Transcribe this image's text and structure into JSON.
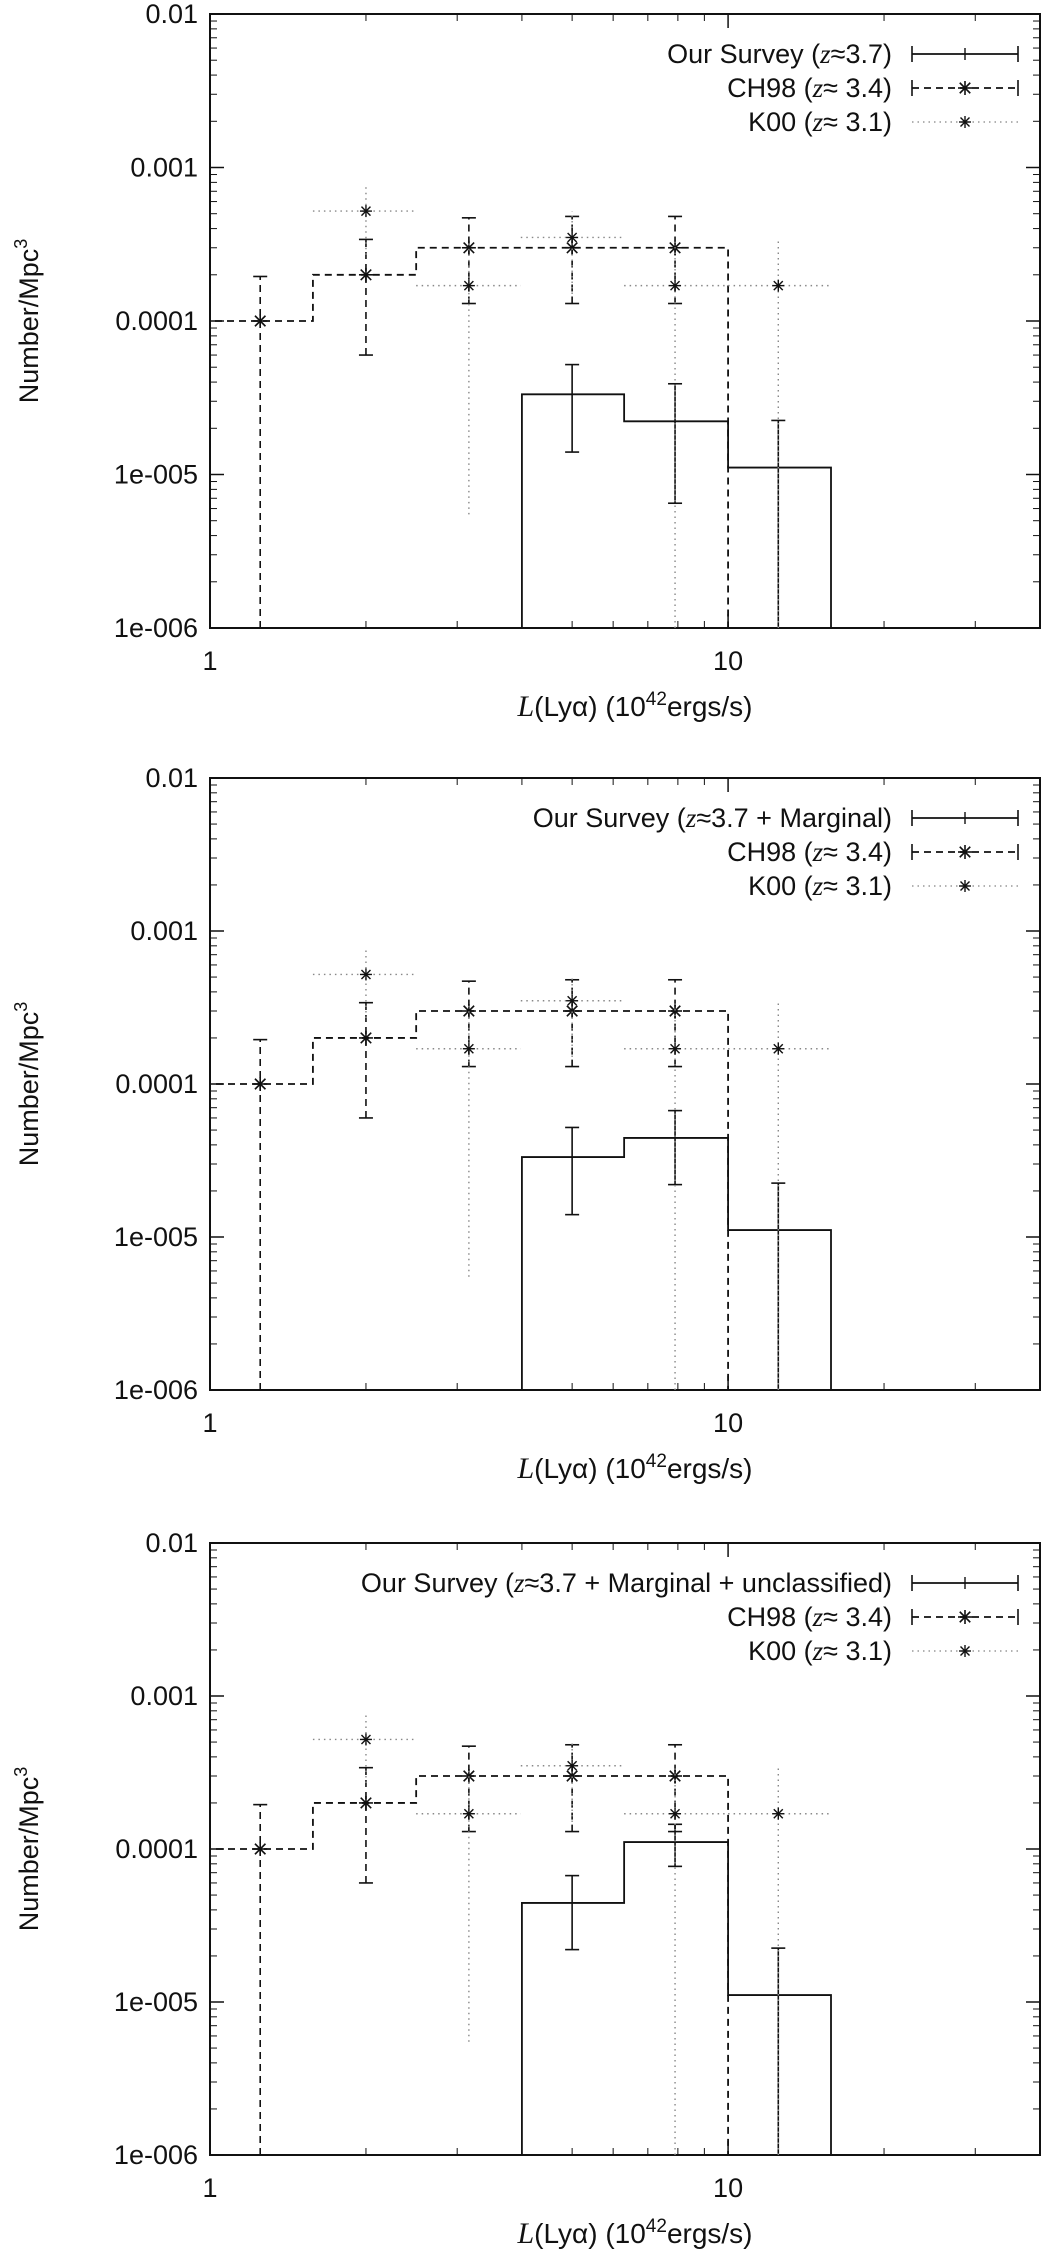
{
  "figure": {
    "panels_count": 3
  },
  "chart_data": [
    {
      "type": "line",
      "scale": {
        "x": "log",
        "y": "log"
      },
      "xlim": [
        1,
        40
      ],
      "ylim": [
        1e-06,
        0.01
      ],
      "x_ticks": [
        {
          "value": 1,
          "label": "1"
        },
        {
          "value": 10,
          "label": "10"
        }
      ],
      "y_ticks": [
        {
          "value": 0.01,
          "label": "0.01"
        },
        {
          "value": 0.001,
          "label": "0.001"
        },
        {
          "value": 0.0001,
          "label": "0.0001"
        },
        {
          "value": 1e-05,
          "label": "1e-005"
        },
        {
          "value": 1e-06,
          "label": "1e-006"
        }
      ],
      "xlabel": {
        "prefix": "L",
        "paren": "(Lyα)",
        "suffix": "(10",
        "sup": "42",
        "tail": "ergs/s)"
      },
      "ylabel": {
        "text": "Number/Mpc",
        "sup": "3"
      },
      "legend_position": "top-right",
      "series": [
        {
          "name": {
            "left": "Our Survey (",
            "z": "z",
            "right": "≈3.7)"
          },
          "style": "solid-histogram",
          "bin_edges": [
            4.0,
            6.3,
            10.0,
            15.8
          ],
          "values": [
            3.33e-05,
            2.22e-05,
            1.11e-05
          ],
          "points": [
            {
              "x": 5.0,
              "y": 3.33e-05,
              "yerr_low": 1.4e-05,
              "yerr_high": 5.2e-05
            },
            {
              "x": 7.9,
              "y": 2.22e-05,
              "yerr_low": 6.5e-06,
              "yerr_high": 3.9e-05
            },
            {
              "x": 12.5,
              "y": 1.11e-05,
              "yerr_low": 1e-06,
              "yerr_high": 2.25e-05
            }
          ]
        },
        {
          "name": {
            "left": "CH98 (",
            "z": "z",
            "right": "≈ 3.4)"
          },
          "style": "dashed-histogram",
          "bin_edges": [
            1.0,
            1.58,
            2.5,
            3.98,
            6.3,
            10.0
          ],
          "values": [
            0.0001,
            0.0002,
            0.0003,
            0.0003,
            0.0003
          ],
          "points": [
            {
              "x": 1.25,
              "y": 0.0001,
              "yerr_low": 1e-06,
              "yerr_high": 0.000195
            },
            {
              "x": 2.0,
              "y": 0.0002,
              "yerr_low": 6e-05,
              "yerr_high": 0.00034
            },
            {
              "x": 3.16,
              "y": 0.0003,
              "yerr_low": 0.00013,
              "yerr_high": 0.00047
            },
            {
              "x": 5.0,
              "y": 0.0003,
              "yerr_low": 0.00013,
              "yerr_high": 0.00048
            },
            {
              "x": 7.9,
              "y": 0.0003,
              "yerr_low": 0.00013,
              "yerr_high": 0.00048
            }
          ]
        },
        {
          "name": {
            "left": "K00 (",
            "z": "z",
            "right": "≈ 3.1)"
          },
          "style": "dotted-points",
          "points": [
            {
              "x": 2.0,
              "y": 0.00052,
              "yerr_low": 0.00027,
              "yerr_high": 0.00078,
              "xerr_low": 1.58,
              "xerr_high": 2.5
            },
            {
              "x": 3.16,
              "y": 0.00017,
              "yerr_low": 5.5e-06,
              "yerr_high": 0.00034,
              "xerr_low": 2.5,
              "xerr_high": 3.98
            },
            {
              "x": 5.0,
              "y": 0.00035,
              "yerr_low": 0.00015,
              "yerr_high": 0.00052,
              "xerr_low": 3.98,
              "xerr_high": 6.3
            },
            {
              "x": 7.9,
              "y": 0.00017,
              "yerr_low": 1e-06,
              "yerr_high": 0.00034,
              "xerr_low": 6.3,
              "xerr_high": 10.0
            },
            {
              "x": 12.5,
              "y": 0.00017,
              "yerr_low": 8e-07,
              "yerr_high": 0.00034,
              "xerr_low": 10.0,
              "xerr_high": 15.8
            }
          ]
        }
      ]
    },
    {
      "type": "line",
      "scale": {
        "x": "log",
        "y": "log"
      },
      "xlim": [
        1,
        40
      ],
      "ylim": [
        1e-06,
        0.01
      ],
      "x_ticks": [
        {
          "value": 1,
          "label": "1"
        },
        {
          "value": 10,
          "label": "10"
        }
      ],
      "y_ticks": [
        {
          "value": 0.01,
          "label": "0.01"
        },
        {
          "value": 0.001,
          "label": "0.001"
        },
        {
          "value": 0.0001,
          "label": "0.0001"
        },
        {
          "value": 1e-05,
          "label": "1e-005"
        },
        {
          "value": 1e-06,
          "label": "1e-006"
        }
      ],
      "xlabel": {
        "prefix": "L",
        "paren": "(Lyα)",
        "suffix": "(10",
        "sup": "42",
        "tail": "ergs/s)"
      },
      "ylabel": {
        "text": "Number/Mpc",
        "sup": "3"
      },
      "legend_position": "top-right",
      "series": [
        {
          "name": {
            "left": "Our Survey (",
            "z": "z",
            "right": "≈3.7 + Marginal)"
          },
          "style": "solid-histogram",
          "bin_edges": [
            4.0,
            6.3,
            10.0,
            15.8
          ],
          "values": [
            3.33e-05,
            4.44e-05,
            1.11e-05
          ],
          "points": [
            {
              "x": 5.0,
              "y": 3.33e-05,
              "yerr_low": 1.4e-05,
              "yerr_high": 5.2e-05
            },
            {
              "x": 7.9,
              "y": 4.44e-05,
              "yerr_low": 2.2e-05,
              "yerr_high": 6.7e-05
            },
            {
              "x": 12.5,
              "y": 1.11e-05,
              "yerr_low": 1e-06,
              "yerr_high": 2.25e-05
            }
          ]
        },
        {
          "name": {
            "left": "CH98 (",
            "z": "z",
            "right": "≈ 3.4)"
          },
          "style": "dashed-histogram",
          "bin_edges": [
            1.0,
            1.58,
            2.5,
            3.98,
            6.3,
            10.0
          ],
          "values": [
            0.0001,
            0.0002,
            0.0003,
            0.0003,
            0.0003
          ],
          "points": [
            {
              "x": 1.25,
              "y": 0.0001,
              "yerr_low": 1e-06,
              "yerr_high": 0.000195
            },
            {
              "x": 2.0,
              "y": 0.0002,
              "yerr_low": 6e-05,
              "yerr_high": 0.00034
            },
            {
              "x": 3.16,
              "y": 0.0003,
              "yerr_low": 0.00013,
              "yerr_high": 0.00047
            },
            {
              "x": 5.0,
              "y": 0.0003,
              "yerr_low": 0.00013,
              "yerr_high": 0.00048
            },
            {
              "x": 7.9,
              "y": 0.0003,
              "yerr_low": 0.00013,
              "yerr_high": 0.00048
            }
          ]
        },
        {
          "name": {
            "left": "K00 (",
            "z": "z",
            "right": "≈ 3.1)"
          },
          "style": "dotted-points",
          "points": [
            {
              "x": 2.0,
              "y": 0.00052,
              "yerr_low": 0.00027,
              "yerr_high": 0.00078,
              "xerr_low": 1.58,
              "xerr_high": 2.5
            },
            {
              "x": 3.16,
              "y": 0.00017,
              "yerr_low": 5.5e-06,
              "yerr_high": 0.00034,
              "xerr_low": 2.5,
              "xerr_high": 3.98
            },
            {
              "x": 5.0,
              "y": 0.00035,
              "yerr_low": 0.00015,
              "yerr_high": 0.00052,
              "xerr_low": 3.98,
              "xerr_high": 6.3
            },
            {
              "x": 7.9,
              "y": 0.00017,
              "yerr_low": 1e-06,
              "yerr_high": 0.00034,
              "xerr_low": 6.3,
              "xerr_high": 10.0
            },
            {
              "x": 12.5,
              "y": 0.00017,
              "yerr_low": 8e-07,
              "yerr_high": 0.00034,
              "xerr_low": 10.0,
              "xerr_high": 15.8
            }
          ]
        }
      ]
    },
    {
      "type": "line",
      "scale": {
        "x": "log",
        "y": "log"
      },
      "xlim": [
        1,
        40
      ],
      "ylim": [
        1e-06,
        0.01
      ],
      "x_ticks": [
        {
          "value": 1,
          "label": "1"
        },
        {
          "value": 10,
          "label": "10"
        }
      ],
      "y_ticks": [
        {
          "value": 0.01,
          "label": "0.01"
        },
        {
          "value": 0.001,
          "label": "0.001"
        },
        {
          "value": 0.0001,
          "label": "0.0001"
        },
        {
          "value": 1e-05,
          "label": "1e-005"
        },
        {
          "value": 1e-06,
          "label": "1e-006"
        }
      ],
      "xlabel": {
        "prefix": "L",
        "paren": "(Lyα)",
        "suffix": "(10",
        "sup": "42",
        "tail": "ergs/s)"
      },
      "ylabel": {
        "text": "Number/Mpc",
        "sup": "3"
      },
      "legend_position": "top-right",
      "series": [
        {
          "name": {
            "left": "Our Survey (",
            "z": "z",
            "right": "≈3.7 + Marginal + unclassified)"
          },
          "style": "solid-histogram",
          "bin_edges": [
            4.0,
            6.3,
            10.0,
            15.8
          ],
          "values": [
            4.44e-05,
            0.000111,
            1.11e-05
          ],
          "points": [
            {
              "x": 5.0,
              "y": 4.44e-05,
              "yerr_low": 2.2e-05,
              "yerr_high": 6.7e-05
            },
            {
              "x": 7.9,
              "y": 0.000111,
              "yerr_low": 7.7e-05,
              "yerr_high": 0.000145
            },
            {
              "x": 12.5,
              "y": 1.11e-05,
              "yerr_low": 1e-06,
              "yerr_high": 2.25e-05
            }
          ]
        },
        {
          "name": {
            "left": "CH98 (",
            "z": "z",
            "right": "≈ 3.4)"
          },
          "style": "dashed-histogram",
          "bin_edges": [
            1.0,
            1.58,
            2.5,
            3.98,
            6.3,
            10.0
          ],
          "values": [
            0.0001,
            0.0002,
            0.0003,
            0.0003,
            0.0003
          ],
          "points": [
            {
              "x": 1.25,
              "y": 0.0001,
              "yerr_low": 1e-06,
              "yerr_high": 0.000195
            },
            {
              "x": 2.0,
              "y": 0.0002,
              "yerr_low": 6e-05,
              "yerr_high": 0.00034
            },
            {
              "x": 3.16,
              "y": 0.0003,
              "yerr_low": 0.00013,
              "yerr_high": 0.00047
            },
            {
              "x": 5.0,
              "y": 0.0003,
              "yerr_low": 0.00013,
              "yerr_high": 0.00048
            },
            {
              "x": 7.9,
              "y": 0.0003,
              "yerr_low": 0.00013,
              "yerr_high": 0.00048
            }
          ]
        },
        {
          "name": {
            "left": "K00 (",
            "z": "z",
            "right": "≈ 3.1)"
          },
          "style": "dotted-points",
          "points": [
            {
              "x": 2.0,
              "y": 0.00052,
              "yerr_low": 0.00027,
              "yerr_high": 0.00078,
              "xerr_low": 1.58,
              "xerr_high": 2.5
            },
            {
              "x": 3.16,
              "y": 0.00017,
              "yerr_low": 5.5e-06,
              "yerr_high": 0.00034,
              "xerr_low": 2.5,
              "xerr_high": 3.98
            },
            {
              "x": 5.0,
              "y": 0.00035,
              "yerr_low": 0.00015,
              "yerr_high": 0.00052,
              "xerr_low": 3.98,
              "xerr_high": 6.3
            },
            {
              "x": 7.9,
              "y": 0.00017,
              "yerr_low": 1e-06,
              "yerr_high": 0.00034,
              "xerr_low": 6.3,
              "xerr_high": 10.0
            },
            {
              "x": 12.5,
              "y": 0.00017,
              "yerr_low": 8e-07,
              "yerr_high": 0.00034,
              "xerr_low": 10.0,
              "xerr_high": 15.8
            }
          ]
        }
      ]
    }
  ]
}
